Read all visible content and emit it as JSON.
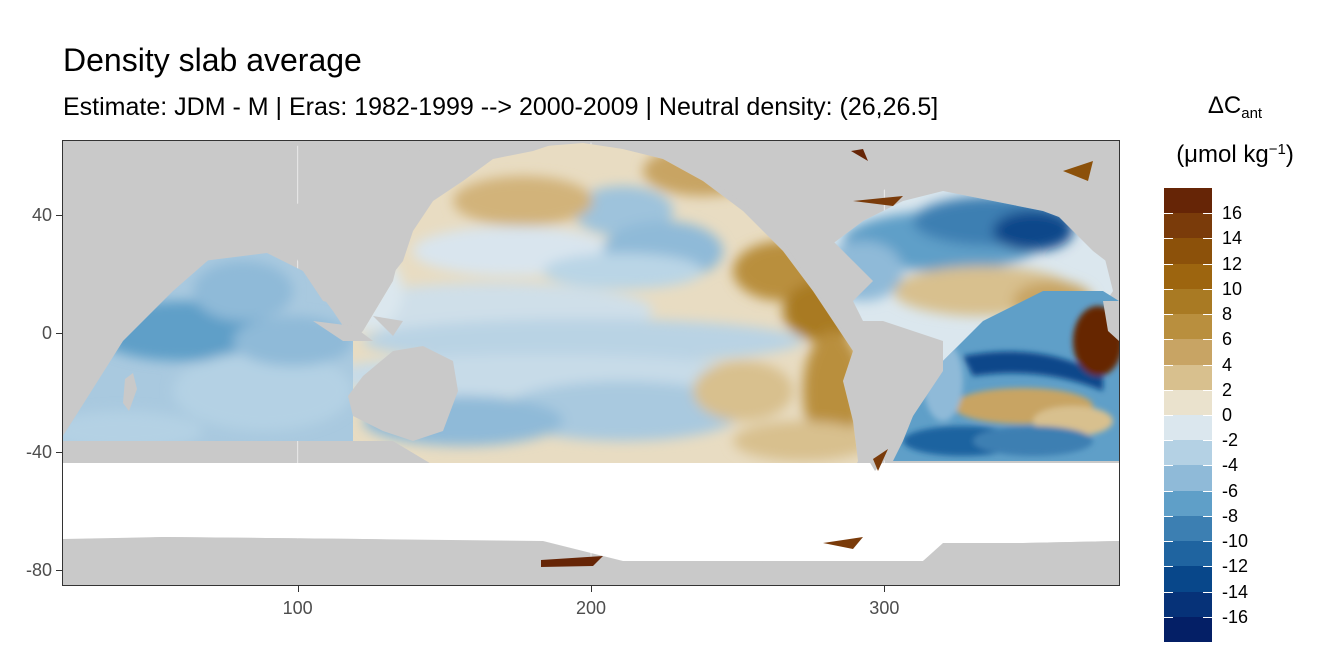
{
  "title": "Density slab average",
  "subtitle": "Estimate: JDM - M | Eras: 1982-1999 --> 2000-2009 | Neutral density: (26,26.5]",
  "legend": {
    "title_main": "ΔC",
    "title_sub": "ant",
    "unit_prefix": "(μmol kg",
    "unit_sup": "−1",
    "unit_suffix": ")",
    "labels": [
      "16",
      "14",
      "12",
      "10",
      "8",
      "6",
      "4",
      "2",
      "0",
      "-2",
      "-4",
      "-6",
      "-8",
      "-10",
      "-12",
      "-14",
      "-16"
    ],
    "colors": [
      "#662506",
      "#7a3b0a",
      "#8c510a",
      "#9d650f",
      "#a97a23",
      "#b98f3e",
      "#c8a464",
      "#d8c08e",
      "#eae2cd",
      "#dbe7ee",
      "#b4d1e4",
      "#8fbad8",
      "#5f9fc8",
      "#3c7fb2",
      "#1f64a0",
      "#08478a",
      "#063278",
      "#041f66"
    ]
  },
  "axes": {
    "x_ticks": [
      "100",
      "200",
      "300"
    ],
    "y_ticks": [
      "40",
      "0",
      "-40",
      "-80"
    ],
    "xlim": [
      20,
      380
    ],
    "ylim": [
      -85,
      65
    ]
  },
  "map_colors": {
    "land": "#c9c9c9",
    "no_data": "#ffffff",
    "grid": "#ebebeb"
  }
}
